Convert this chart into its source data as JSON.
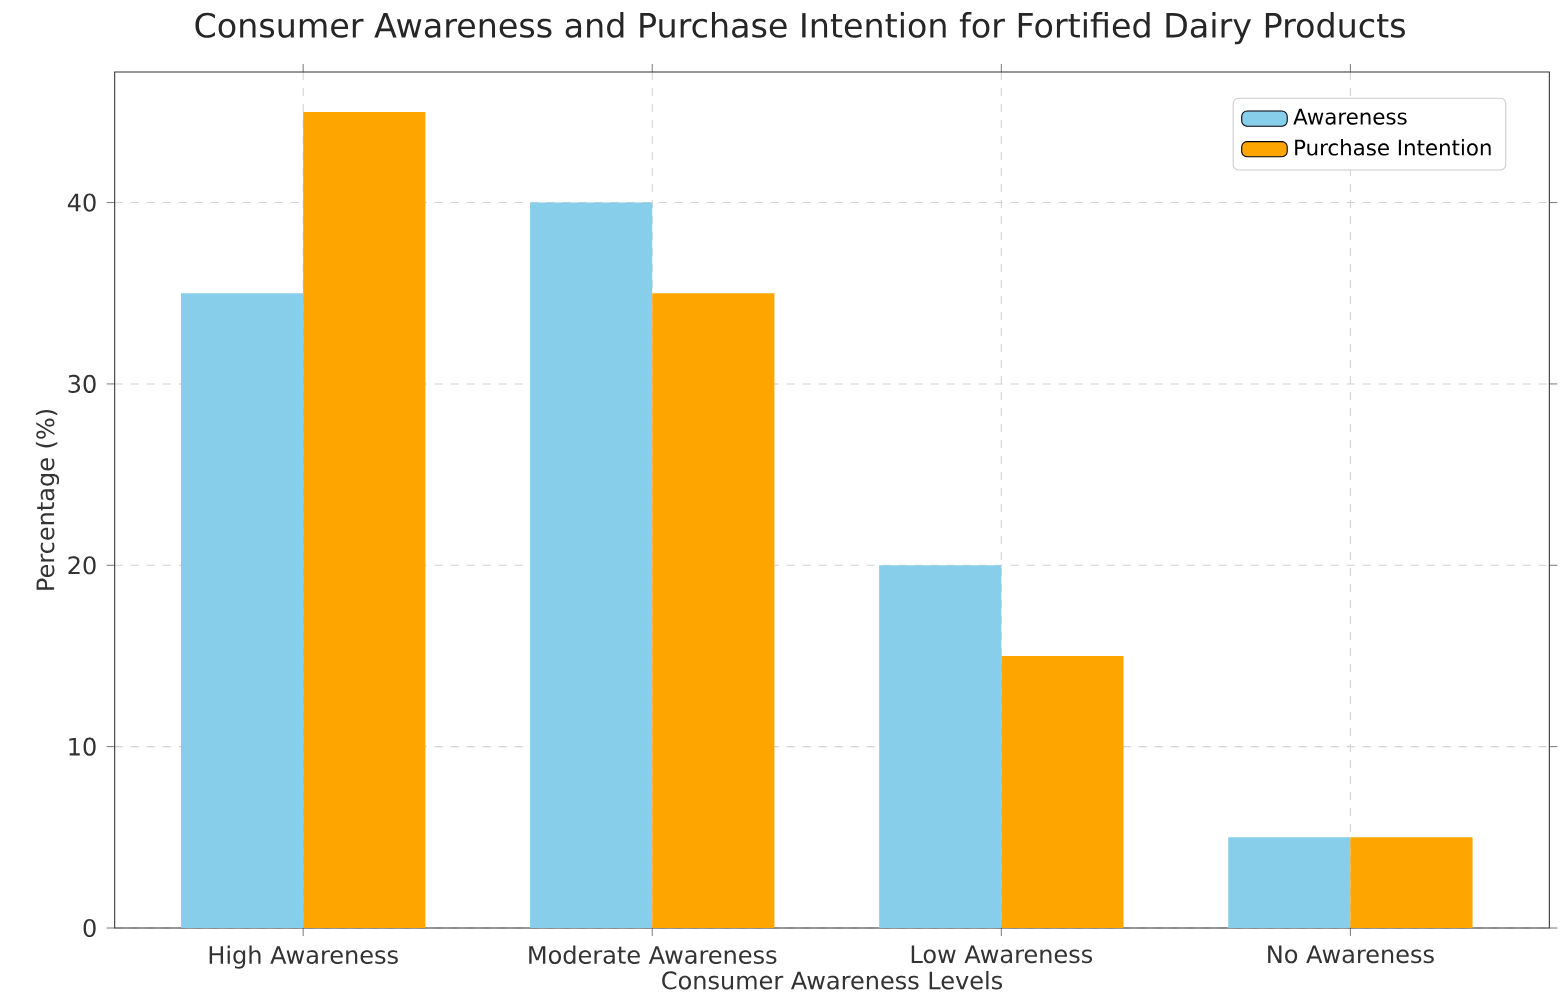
{
  "chart_data": {
    "type": "bar",
    "title": "Consumer Awareness and Purchase Intention for Fortified Dairy Products",
    "xlabel": "Consumer Awareness Levels",
    "ylabel": "Percentage (%)",
    "categories": [
      "High Awareness",
      "Moderate Awareness",
      "Low Awareness",
      "No Awareness"
    ],
    "series": [
      {
        "name": "Awareness",
        "color": "#87ceeb",
        "values": [
          35,
          40,
          20,
          5
        ]
      },
      {
        "name": "Purchase Intention",
        "color": "#ffa500",
        "values": [
          45,
          35,
          15,
          5
        ]
      }
    ],
    "ylim": [
      0,
      47.2
    ],
    "yticks": [
      0,
      10,
      20,
      30,
      40
    ],
    "grid": true,
    "legend": "top right"
  }
}
